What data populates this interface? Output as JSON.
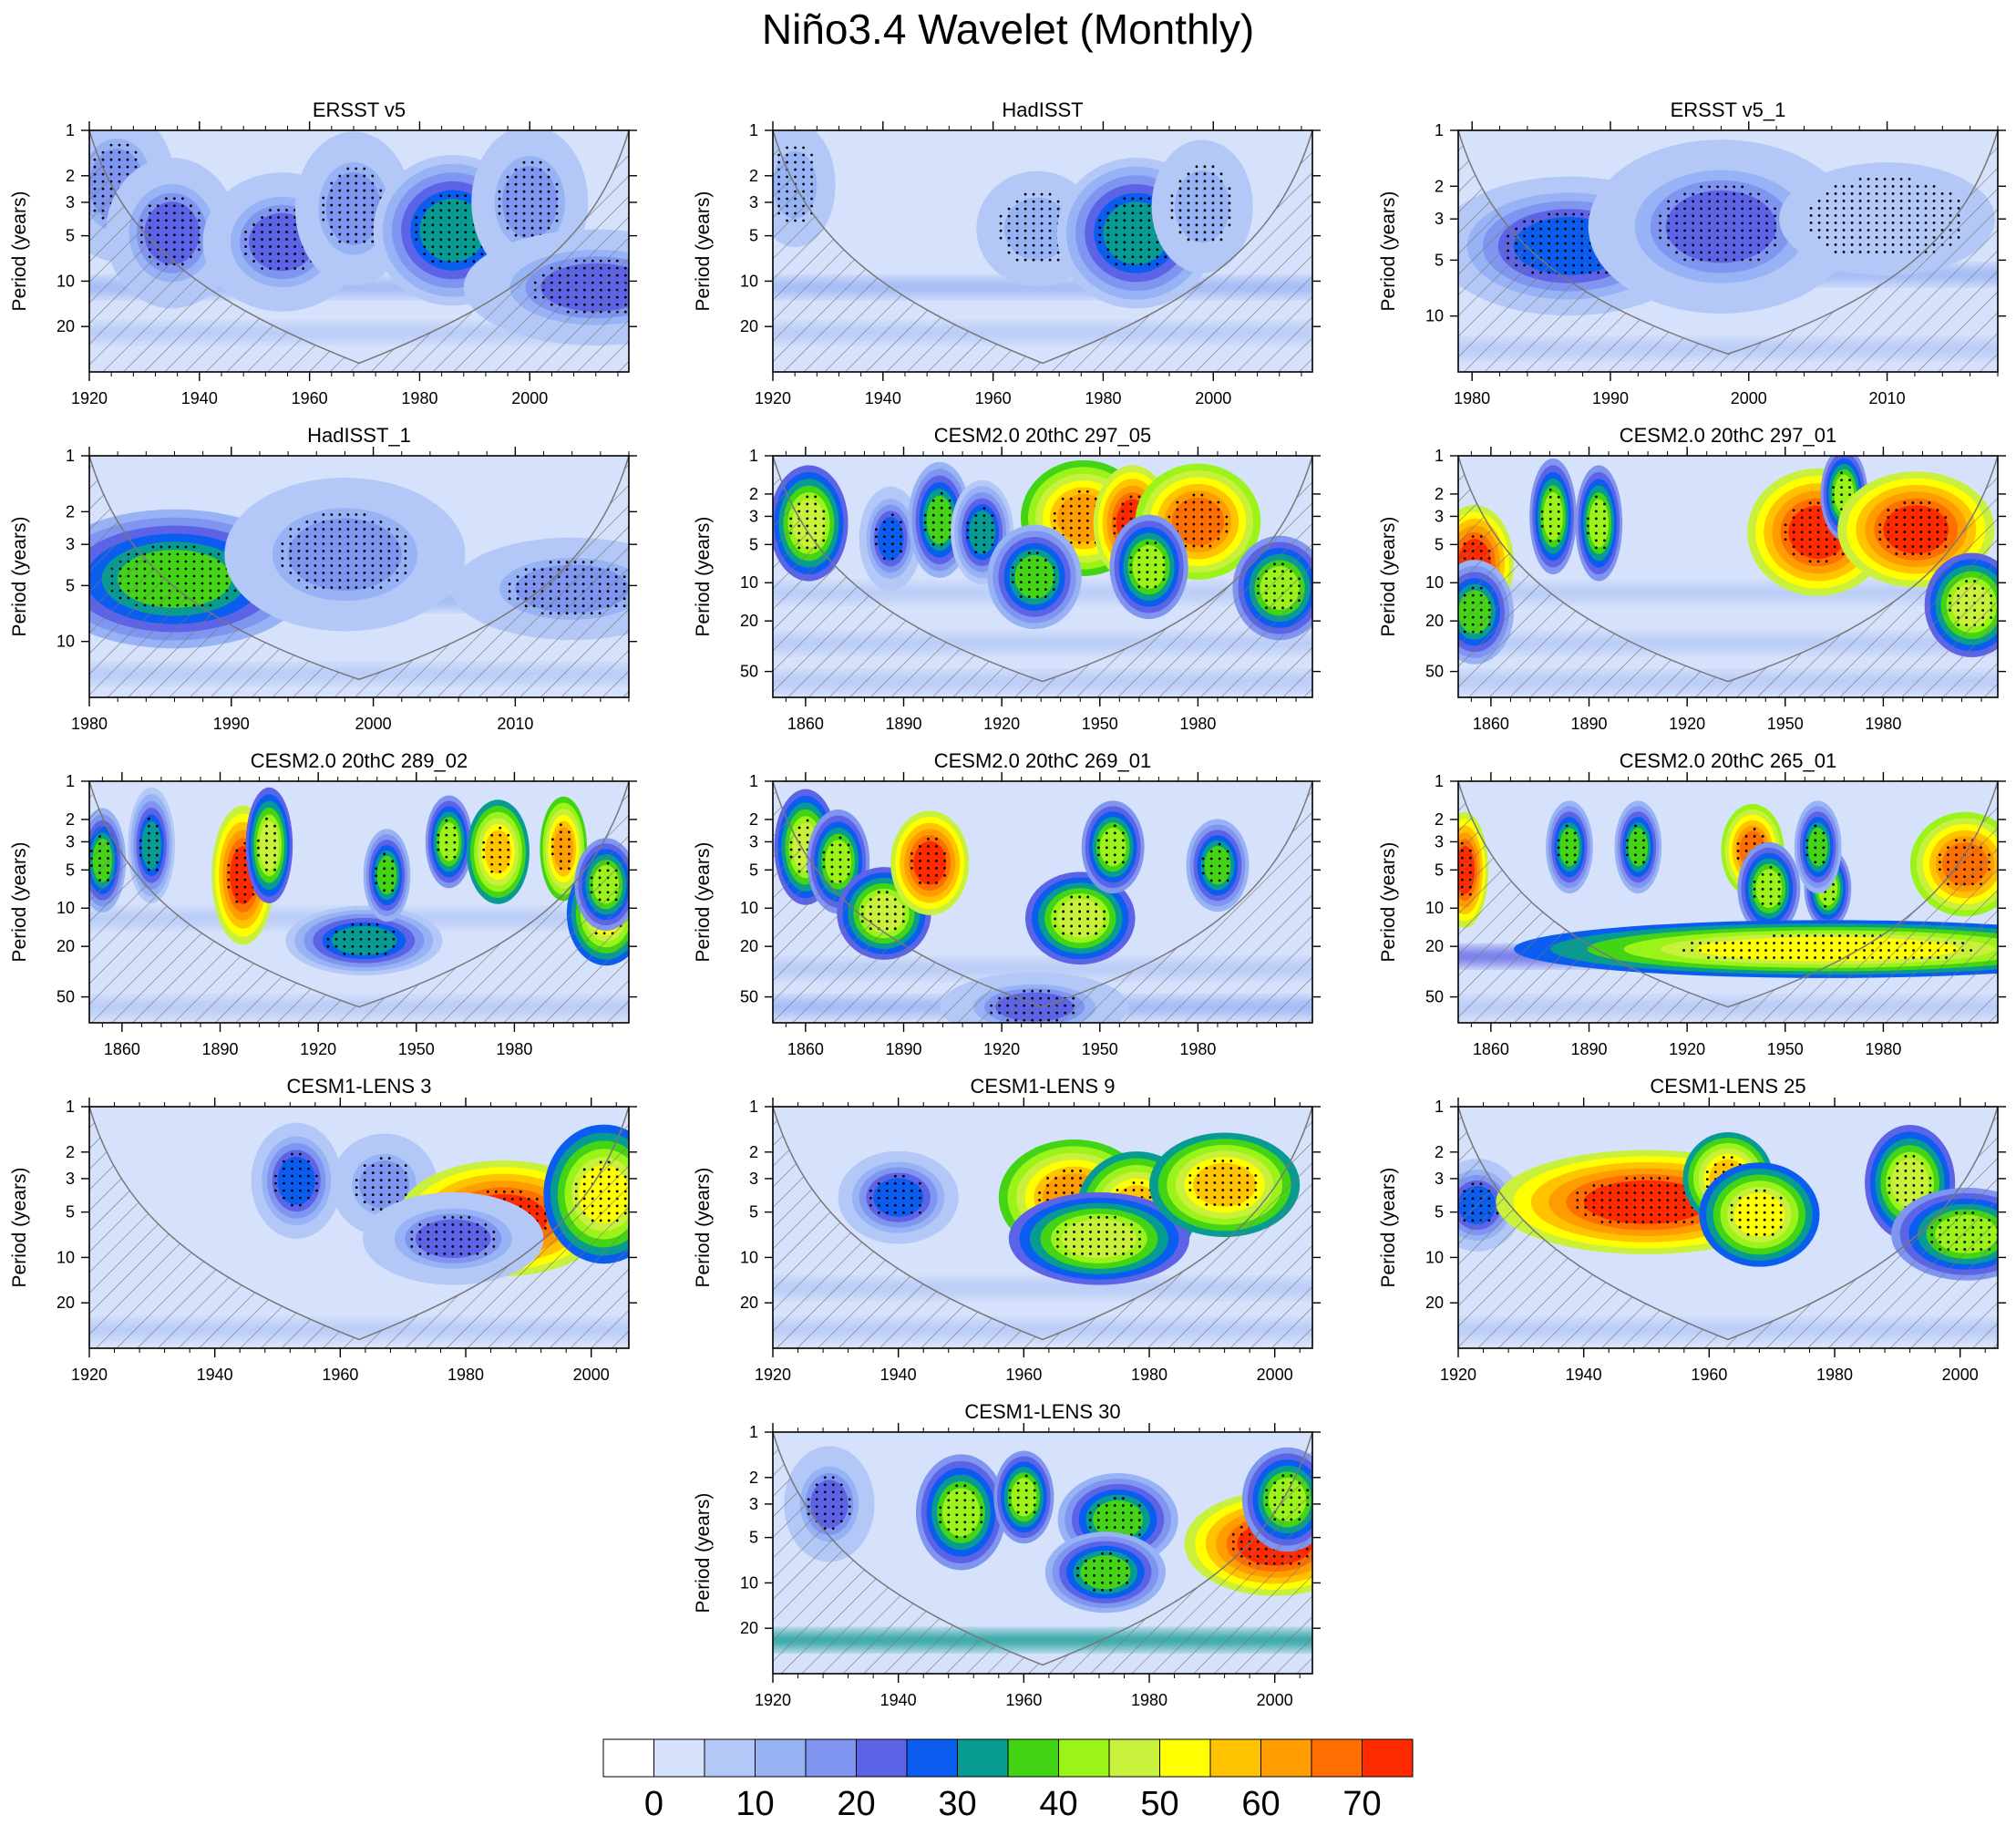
{
  "figure_title": "Niño3.4 Wavelet (Monthly)",
  "colors": {
    "levels": [
      "#ffffff",
      "#d6e1fb",
      "#b4c8f7",
      "#97b3f5",
      "#7f95f0",
      "#5d63e7",
      "#0b5df0",
      "#079b91",
      "#43d416",
      "#9cf319",
      "#c9f03b",
      "#ffff00",
      "#ffc300",
      "#ff9d00",
      "#ff6e00",
      "#ff2a00"
    ],
    "background": "#d6e1fb",
    "hatch": "#777777",
    "coi_line": "#777777"
  },
  "colorbar": {
    "tick_labels": [
      "0",
      "10",
      "20",
      "30",
      "40",
      "50",
      "60",
      "70"
    ]
  },
  "chart_data": [
    {
      "type": "heatmap",
      "title": "ERSST v5",
      "ylabel": "Period (years)",
      "xlim": [
        1920,
        2018
      ],
      "ylim": [
        1,
        40
      ],
      "yticks": [
        1,
        2,
        3,
        5,
        10,
        20
      ],
      "xticks": [
        1920,
        1940,
        1960,
        1980,
        2000
      ],
      "coi_min_period": 35,
      "bands": [
        {
          "period": 11,
          "level": 3
        },
        {
          "period": 22,
          "level": 2
        }
      ],
      "blobs": [
        {
          "x": 1925,
          "p": 2.3,
          "w": 5,
          "hp": 0.15,
          "level": 4
        },
        {
          "x": 1935,
          "p": 4.8,
          "w": 5,
          "hp": 0.13,
          "level": 5
        },
        {
          "x": 1955,
          "p": 5.5,
          "w": 6,
          "hp": 0.12,
          "level": 5
        },
        {
          "x": 1968,
          "p": 3.3,
          "w": 5,
          "hp": 0.15,
          "level": 4
        },
        {
          "x": 1986,
          "p": 4.6,
          "w": 6,
          "hp": 0.13,
          "level": 7
        },
        {
          "x": 2000,
          "p": 3.0,
          "w": 5,
          "hp": 0.15,
          "level": 4
        },
        {
          "x": 2012,
          "p": 11,
          "w": 10,
          "hp": 0.1,
          "level": 5
        }
      ]
    },
    {
      "type": "heatmap",
      "title": "HadISST",
      "ylabel": "Period (years)",
      "xlim": [
        1920,
        2018
      ],
      "ylim": [
        1,
        40
      ],
      "yticks": [
        1,
        2,
        3,
        5,
        10,
        20
      ],
      "xticks": [
        1920,
        1940,
        1960,
        1980,
        2000
      ],
      "coi_min_period": 35,
      "bands": [
        {
          "period": 11,
          "level": 3
        },
        {
          "period": 22,
          "level": 2
        }
      ],
      "blobs": [
        {
          "x": 1924,
          "p": 2.3,
          "w": 4,
          "hp": 0.14,
          "level": 3
        },
        {
          "x": 1968,
          "p": 4.5,
          "w": 6,
          "hp": 0.13,
          "level": 3
        },
        {
          "x": 1986,
          "p": 4.8,
          "w": 6,
          "hp": 0.13,
          "level": 7
        },
        {
          "x": 1998,
          "p": 3.2,
          "w": 5,
          "hp": 0.15,
          "level": 3
        }
      ]
    },
    {
      "type": "heatmap",
      "title": "ERSST v5_1",
      "ylabel": "Period (years)",
      "xlim": [
        1979,
        2018
      ],
      "ylim": [
        1,
        20
      ],
      "yticks": [
        1,
        2,
        3,
        5,
        10
      ],
      "xticks": [
        1980,
        1990,
        2000,
        2010
      ],
      "coi_min_period": 16,
      "bands": [
        {
          "period": 6,
          "level": 3
        },
        {
          "period": 15,
          "level": 2
        }
      ],
      "blobs": [
        {
          "x": 1987,
          "p": 4.2,
          "w": 4,
          "hp": 0.12,
          "level": 6
        },
        {
          "x": 1998,
          "p": 3.3,
          "w": 4,
          "hp": 0.15,
          "level": 5
        },
        {
          "x": 2010,
          "p": 3.0,
          "w": 5,
          "hp": 0.15,
          "level": 2
        }
      ]
    },
    {
      "type": "heatmap",
      "title": "HadISST_1",
      "ylabel": "Period (years)",
      "xlim": [
        1980,
        2018
      ],
      "ylim": [
        1,
        20
      ],
      "yticks": [
        1,
        2,
        3,
        5,
        10
      ],
      "xticks": [
        1980,
        1990,
        2000,
        2010
      ],
      "coi_min_period": 16,
      "bands": [
        {
          "period": 6,
          "level": 3
        },
        {
          "period": 15,
          "level": 2
        }
      ],
      "blobs": [
        {
          "x": 1986,
          "p": 4.6,
          "w": 4,
          "hp": 0.12,
          "level": 8
        },
        {
          "x": 1998,
          "p": 3.4,
          "w": 4,
          "hp": 0.15,
          "level": 4
        },
        {
          "x": 2014,
          "p": 5.2,
          "w": 4,
          "hp": 0.1,
          "level": 4
        }
      ]
    },
    {
      "type": "heatmap",
      "title": "CESM2.0 20thC 297_05",
      "ylabel": "Period (years)",
      "xlim": [
        1850,
        2015
      ],
      "ylim": [
        1,
        80
      ],
      "yticks": [
        1,
        2,
        3,
        5,
        10,
        20,
        50
      ],
      "xticks": [
        1860,
        1890,
        1920,
        1950,
        1980
      ],
      "coi_min_period": 60,
      "bands": [
        {
          "period": 12,
          "level": 2
        },
        {
          "period": 30,
          "level": 2
        },
        {
          "period": 60,
          "level": 2
        }
      ],
      "blobs": [
        {
          "x": 1861,
          "p": 3.4,
          "w": 5,
          "hp": 0.1,
          "level": 10
        },
        {
          "x": 1886,
          "p": 4.5,
          "w": 4,
          "hp": 0.09,
          "level": 6
        },
        {
          "x": 1901,
          "p": 3.2,
          "w": 4,
          "hp": 0.1,
          "level": 8
        },
        {
          "x": 1914,
          "p": 4.0,
          "w": 4,
          "hp": 0.09,
          "level": 7
        },
        {
          "x": 1945,
          "p": 3.1,
          "w": 8,
          "hp": 0.1,
          "level": 13
        },
        {
          "x": 1960,
          "p": 3.4,
          "w": 5,
          "hp": 0.1,
          "level": 15
        },
        {
          "x": 1980,
          "p": 3.3,
          "w": 8,
          "hp": 0.1,
          "level": 14
        },
        {
          "x": 1930,
          "p": 9,
          "w": 6,
          "hp": 0.09,
          "level": 8
        },
        {
          "x": 1965,
          "p": 7.5,
          "w": 5,
          "hp": 0.09,
          "level": 9
        },
        {
          "x": 2005,
          "p": 11,
          "w": 6,
          "hp": 0.09,
          "level": 9
        }
      ]
    },
    {
      "type": "heatmap",
      "title": "CESM2.0 20thC 297_01",
      "ylabel": "Period (years)",
      "xlim": [
        1850,
        2015
      ],
      "ylim": [
        1,
        80
      ],
      "yticks": [
        1,
        2,
        3,
        5,
        10,
        20,
        50
      ],
      "xticks": [
        1860,
        1890,
        1920,
        1950,
        1980
      ],
      "coi_min_period": 60,
      "bands": [
        {
          "period": 12,
          "level": 2
        },
        {
          "period": 30,
          "level": 2
        },
        {
          "period": 60,
          "level": 2
        }
      ],
      "blobs": [
        {
          "x": 1855,
          "p": 7,
          "w": 5,
          "hp": 0.1,
          "level": 15
        },
        {
          "x": 1855,
          "p": 17,
          "w": 5,
          "hp": 0.09,
          "level": 8
        },
        {
          "x": 1879,
          "p": 3.0,
          "w": 3,
          "hp": 0.1,
          "level": 9
        },
        {
          "x": 1893,
          "p": 3.4,
          "w": 3,
          "hp": 0.1,
          "level": 9
        },
        {
          "x": 1960,
          "p": 4.0,
          "w": 9,
          "hp": 0.11,
          "level": 15
        },
        {
          "x": 1968,
          "p": 2.0,
          "w": 3,
          "hp": 0.08,
          "level": 9
        },
        {
          "x": 1990,
          "p": 3.8,
          "w": 10,
          "hp": 0.1,
          "level": 15
        },
        {
          "x": 2007,
          "p": 15,
          "w": 6,
          "hp": 0.09,
          "level": 10
        }
      ]
    },
    {
      "type": "heatmap",
      "title": "CESM2.0 20thC 289_02",
      "ylabel": "Period (years)",
      "xlim": [
        1850,
        2015
      ],
      "ylim": [
        1,
        80
      ],
      "yticks": [
        1,
        2,
        3,
        5,
        10,
        20,
        50
      ],
      "xticks": [
        1860,
        1890,
        1920,
        1950,
        1980
      ],
      "coi_min_period": 60,
      "bands": [
        {
          "period": 12,
          "level": 2
        },
        {
          "period": 60,
          "level": 2
        }
      ],
      "blobs": [
        {
          "x": 1854,
          "p": 4.2,
          "w": 3,
          "hp": 0.09,
          "level": 8
        },
        {
          "x": 1869,
          "p": 3.2,
          "w": 3,
          "hp": 0.1,
          "level": 7
        },
        {
          "x": 1897,
          "p": 5.5,
          "w": 4,
          "hp": 0.12,
          "level": 15
        },
        {
          "x": 1905,
          "p": 3.2,
          "w": 3,
          "hp": 0.1,
          "level": 10
        },
        {
          "x": 1934,
          "p": 18,
          "w": 10,
          "hp": 0.06,
          "level": 7
        },
        {
          "x": 1941,
          "p": 5.5,
          "w": 3,
          "hp": 0.08,
          "level": 8
        },
        {
          "x": 1960,
          "p": 3.0,
          "w": 3,
          "hp": 0.08,
          "level": 9
        },
        {
          "x": 1975,
          "p": 3.6,
          "w": 4,
          "hp": 0.09,
          "level": 12
        },
        {
          "x": 1995,
          "p": 3.4,
          "w": 3,
          "hp": 0.09,
          "level": 13
        },
        {
          "x": 2008,
          "p": 11,
          "w": 5,
          "hp": 0.09,
          "level": 11
        },
        {
          "x": 2008,
          "p": 6.5,
          "w": 4,
          "hp": 0.08,
          "level": 9
        }
      ]
    },
    {
      "type": "heatmap",
      "title": "CESM2.0 20thC 269_01",
      "ylabel": "Period (years)",
      "xlim": [
        1850,
        2015
      ],
      "ylim": [
        1,
        80
      ],
      "yticks": [
        1,
        2,
        3,
        5,
        10,
        20,
        50
      ],
      "xticks": [
        1860,
        1890,
        1920,
        1950,
        1980
      ],
      "coi_min_period": 60,
      "bands": [
        {
          "period": 30,
          "level": 2
        },
        {
          "period": 60,
          "level": 3
        }
      ],
      "blobs": [
        {
          "x": 1860,
          "p": 3.3,
          "w": 4,
          "hp": 0.1,
          "level": 10
        },
        {
          "x": 1870,
          "p": 4.3,
          "w": 4,
          "hp": 0.09,
          "level": 9
        },
        {
          "x": 1884,
          "p": 11,
          "w": 6,
          "hp": 0.08,
          "level": 10
        },
        {
          "x": 1898,
          "p": 4.4,
          "w": 5,
          "hp": 0.09,
          "level": 15
        },
        {
          "x": 1930,
          "p": 60,
          "w": 12,
          "hp": 0.06,
          "level": 5
        },
        {
          "x": 1944,
          "p": 12,
          "w": 7,
          "hp": 0.08,
          "level": 10
        },
        {
          "x": 1954,
          "p": 3.3,
          "w": 4,
          "hp": 0.08,
          "level": 9
        },
        {
          "x": 1986,
          "p": 4.6,
          "w": 4,
          "hp": 0.08,
          "level": 8
        }
      ]
    },
    {
      "type": "heatmap",
      "title": "CESM2.0 20thC 265_01",
      "ylabel": "Period (years)",
      "xlim": [
        1850,
        2015
      ],
      "ylim": [
        1,
        80
      ],
      "yticks": [
        1,
        2,
        3,
        5,
        10,
        20,
        50
      ],
      "xticks": [
        1860,
        1890,
        1920,
        1950,
        1980
      ],
      "coi_min_period": 60,
      "bands": [
        {
          "period": 24,
          "level": 5
        },
        {
          "period": 60,
          "level": 2
        }
      ],
      "blobs": [
        {
          "x": 1852,
          "p": 5.0,
          "w": 3,
          "hp": 0.1,
          "level": 15
        },
        {
          "x": 1884,
          "p": 3.3,
          "w": 3,
          "hp": 0.08,
          "level": 8
        },
        {
          "x": 1905,
          "p": 3.3,
          "w": 3,
          "hp": 0.08,
          "level": 8
        },
        {
          "x": 1940,
          "p": 3.5,
          "w": 4,
          "hp": 0.08,
          "level": 14
        },
        {
          "x": 1945,
          "p": 7,
          "w": 4,
          "hp": 0.08,
          "level": 9
        },
        {
          "x": 1963,
          "p": 7,
          "w": 3,
          "hp": 0.07,
          "level": 9
        },
        {
          "x": 1960,
          "p": 3.3,
          "w": 3,
          "hp": 0.08,
          "level": 8
        },
        {
          "x": 1963,
          "p": 21,
          "w": 40,
          "hp": 0.05,
          "level": 11
        },
        {
          "x": 2005,
          "p": 4.5,
          "w": 7,
          "hp": 0.09,
          "level": 14
        }
      ]
    },
    {
      "type": "heatmap",
      "title": "CESM1-LENS 3",
      "ylabel": "Period (years)",
      "xlim": [
        1920,
        2006
      ],
      "ylim": [
        1,
        40
      ],
      "yticks": [
        1,
        2,
        3,
        5,
        10,
        20
      ],
      "xticks": [
        1920,
        1940,
        1960,
        1980,
        2000
      ],
      "coi_min_period": 35,
      "bands": [
        {
          "period": 30,
          "level": 2
        }
      ],
      "blobs": [
        {
          "x": 1953,
          "p": 3.1,
          "w": 3,
          "hp": 0.1,
          "level": 6
        },
        {
          "x": 1967,
          "p": 3.3,
          "w": 4,
          "hp": 0.1,
          "level": 4
        },
        {
          "x": 1986,
          "p": 5.5,
          "w": 7,
          "hp": 0.1,
          "level": 15
        },
        {
          "x": 2002,
          "p": 3.8,
          "w": 4,
          "hp": 0.12,
          "level": 11
        },
        {
          "x": 1978,
          "p": 7.5,
          "w": 6,
          "hp": 0.08,
          "level": 5
        }
      ]
    },
    {
      "type": "heatmap",
      "title": "CESM1-LENS 9",
      "ylabel": "Period (years)",
      "xlim": [
        1920,
        2006
      ],
      "ylim": [
        1,
        40
      ],
      "yticks": [
        1,
        2,
        3,
        5,
        10,
        20
      ],
      "xticks": [
        1920,
        1940,
        1960,
        1980,
        2000
      ],
      "coi_min_period": 35,
      "bands": [
        {
          "period": 16,
          "level": 2
        },
        {
          "period": 30,
          "level": 2
        }
      ],
      "blobs": [
        {
          "x": 1940,
          "p": 4.0,
          "w": 4,
          "hp": 0.08,
          "level": 6
        },
        {
          "x": 1968,
          "p": 4.0,
          "w": 5,
          "hp": 0.1,
          "level": 13
        },
        {
          "x": 1978,
          "p": 4.8,
          "w": 4,
          "hp": 0.1,
          "level": 12
        },
        {
          "x": 1972,
          "p": 7.5,
          "w": 6,
          "hp": 0.08,
          "level": 10
        },
        {
          "x": 1992,
          "p": 3.3,
          "w": 5,
          "hp": 0.09,
          "level": 12
        }
      ]
    },
    {
      "type": "heatmap",
      "title": "CESM1-LENS 25",
      "ylabel": "Period (years)",
      "xlim": [
        1920,
        2006
      ],
      "ylim": [
        1,
        40
      ],
      "yticks": [
        1,
        2,
        3,
        5,
        10,
        20
      ],
      "xticks": [
        1920,
        1940,
        1960,
        1980,
        2000
      ],
      "coi_min_period": 35,
      "bands": [
        {
          "period": 30,
          "level": 2
        }
      ],
      "blobs": [
        {
          "x": 1923,
          "p": 4.5,
          "w": 3,
          "hp": 0.08,
          "level": 6
        },
        {
          "x": 1950,
          "p": 4.3,
          "w": 10,
          "hp": 0.09,
          "level": 15
        },
        {
          "x": 1963,
          "p": 3.0,
          "w": 3,
          "hp": 0.08,
          "level": 12
        },
        {
          "x": 1968,
          "p": 5.2,
          "w": 4,
          "hp": 0.09,
          "level": 11
        },
        {
          "x": 1992,
          "p": 3.2,
          "w": 3,
          "hp": 0.1,
          "level": 10
        },
        {
          "x": 2001,
          "p": 7.0,
          "w": 5,
          "hp": 0.08,
          "level": 9
        }
      ]
    },
    {
      "type": "heatmap",
      "title": "CESM1-LENS 30",
      "ylabel": "Period (years)",
      "xlim": [
        1920,
        2006
      ],
      "ylim": [
        1,
        40
      ],
      "yticks": [
        1,
        2,
        3,
        5,
        10,
        20
      ],
      "xticks": [
        1920,
        1940,
        1960,
        1980,
        2000
      ],
      "coi_min_period": 35,
      "bands": [
        {
          "period": 24,
          "level": 7
        }
      ],
      "blobs": [
        {
          "x": 1929,
          "p": 3.0,
          "w": 3,
          "hp": 0.1,
          "level": 5
        },
        {
          "x": 1950,
          "p": 3.4,
          "w": 3,
          "hp": 0.1,
          "level": 9
        },
        {
          "x": 1960,
          "p": 2.7,
          "w": 2,
          "hp": 0.08,
          "level": 9
        },
        {
          "x": 1975,
          "p": 3.8,
          "w": 4,
          "hp": 0.08,
          "level": 8
        },
        {
          "x": 1973,
          "p": 8.5,
          "w": 4,
          "hp": 0.07,
          "level": 8
        },
        {
          "x": 2000,
          "p": 5.5,
          "w": 6,
          "hp": 0.09,
          "level": 15
        },
        {
          "x": 2002,
          "p": 2.8,
          "w": 3,
          "hp": 0.09,
          "level": 9
        }
      ]
    }
  ]
}
